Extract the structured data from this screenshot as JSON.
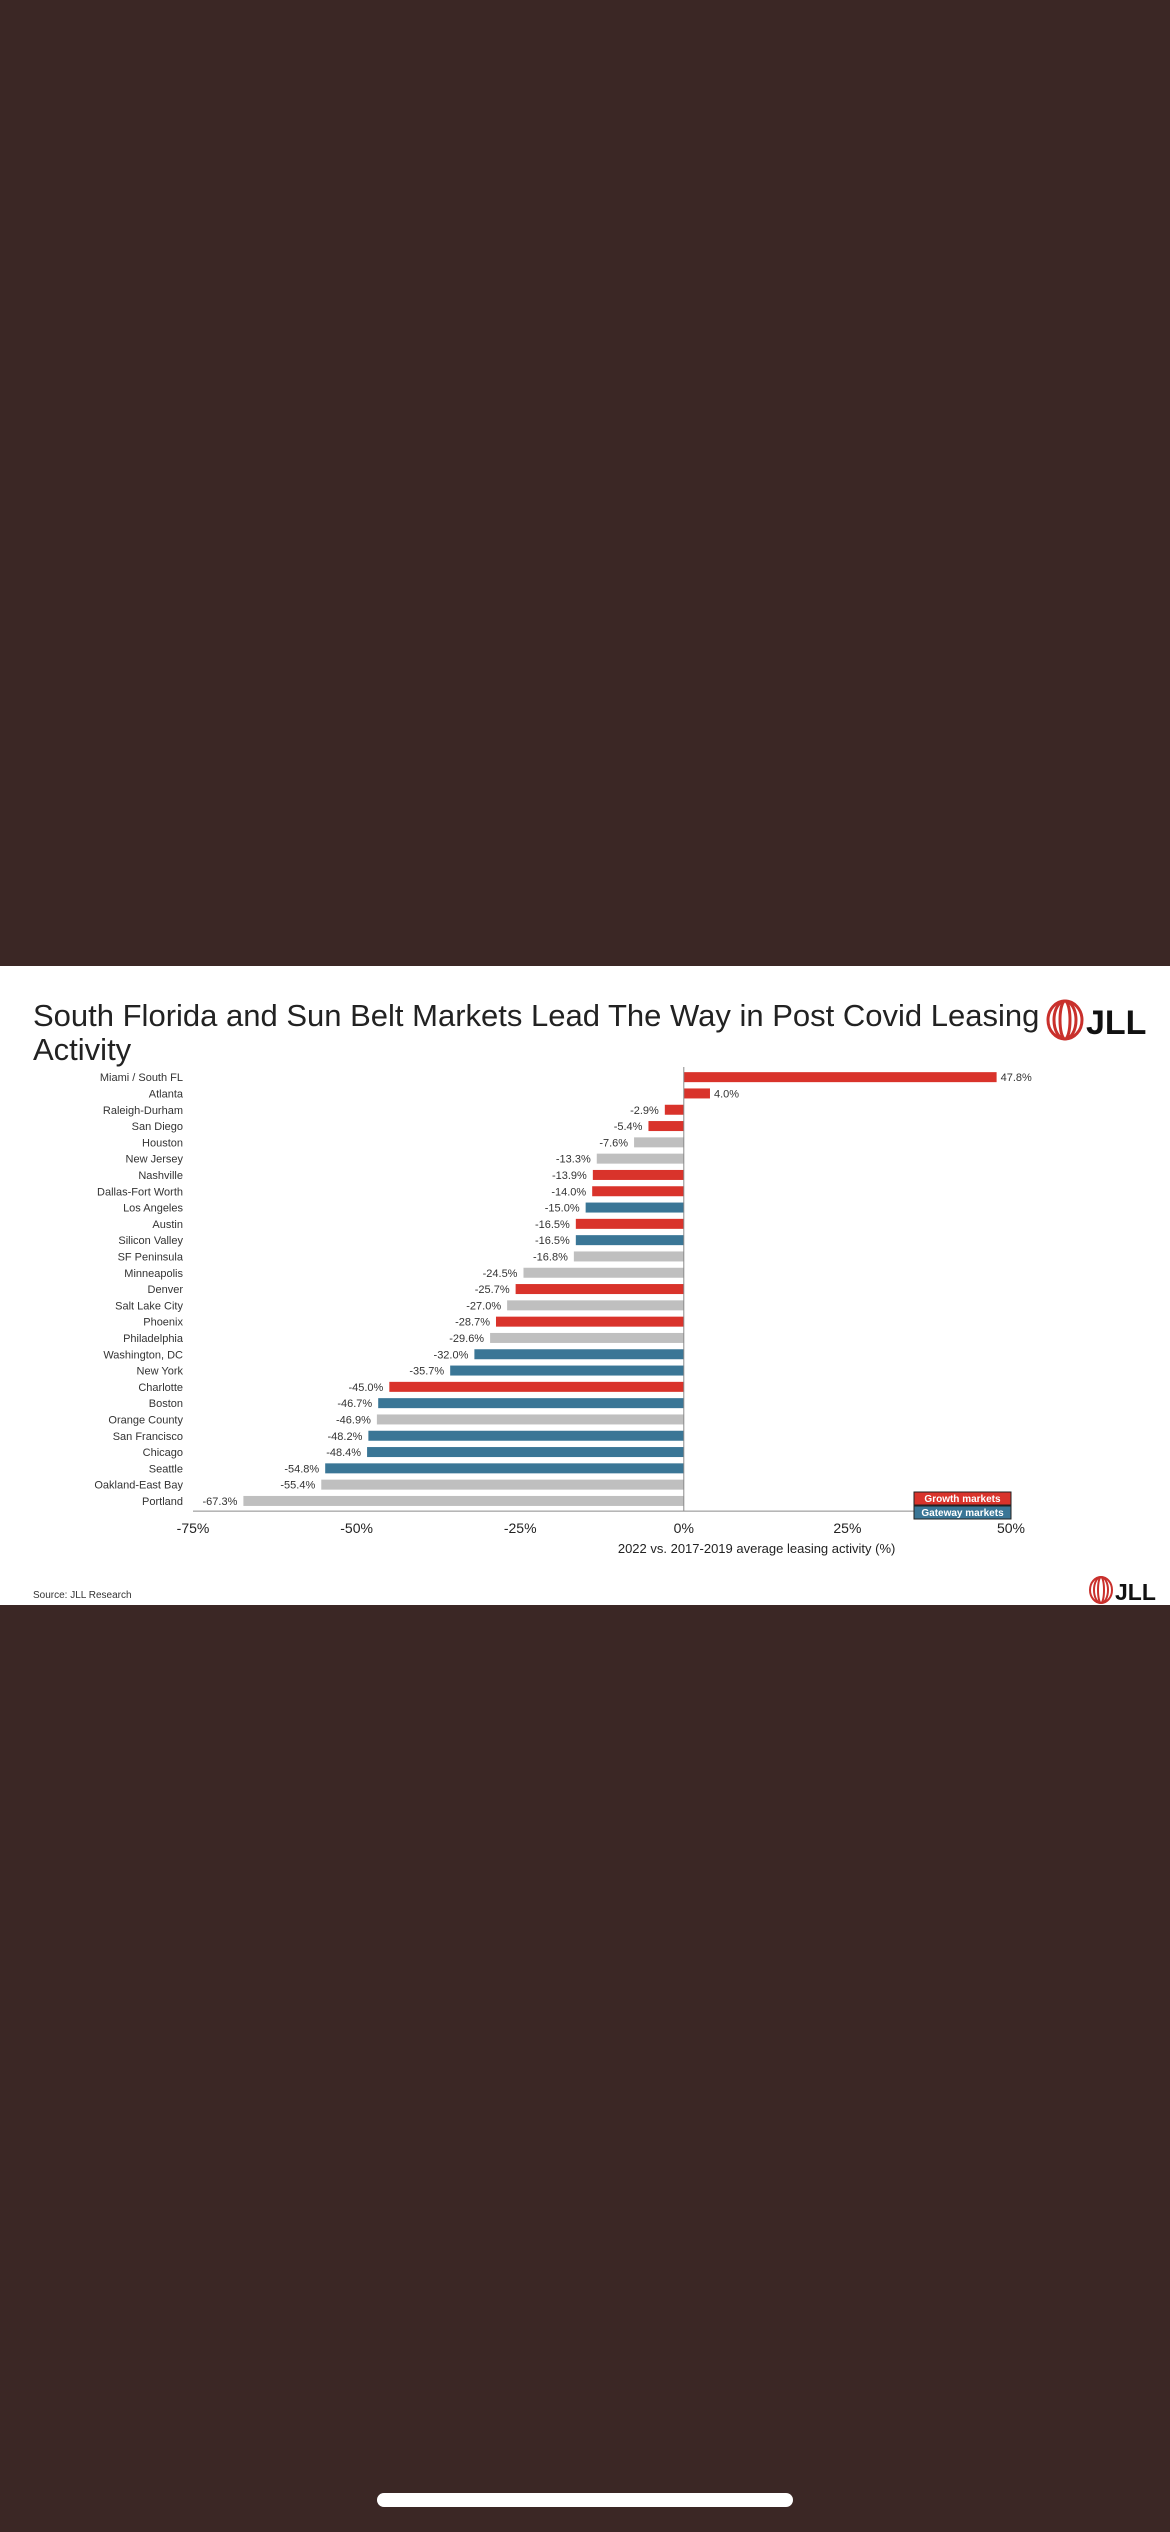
{
  "title": "South Florida and Sun Belt Markets Lead The Way in Post Covid Leasing Activity",
  "logo_text": "JLL",
  "source": "Source: JLL Research",
  "colors": {
    "growth": "#d9332b",
    "gateway": "#3a7696",
    "other": "#bfbfbf",
    "background": "#3b2725"
  },
  "chart_data": {
    "type": "bar",
    "orientation": "horizontal",
    "xlabel": "2022 vs. 2017-2019 average leasing activity (%)",
    "xlim": [
      -75,
      50
    ],
    "xticks": [
      "-75%",
      "-50%",
      "-25%",
      "0%",
      "25%",
      "50%"
    ],
    "tick_values": [
      -75,
      -50,
      -25,
      0,
      25,
      50
    ],
    "legend": {
      "placement": "bottom-right",
      "items": [
        {
          "label": "Growth markets",
          "group": "growth"
        },
        {
          "label": "Gateway markets",
          "group": "gateway"
        }
      ]
    },
    "categories": [
      "Miami / South FL",
      "Atlanta",
      "Raleigh-Durham",
      "San Diego",
      "Houston",
      "New Jersey",
      "Nashville",
      "Dallas-Fort Worth",
      "Los Angeles",
      "Austin",
      "Silicon Valley",
      "SF Peninsula",
      "Minneapolis",
      "Denver",
      "Salt Lake City",
      "Phoenix",
      "Philadelphia",
      "Washington, DC",
      "New York",
      "Charlotte",
      "Boston",
      "Orange County",
      "San Francisco",
      "Chicago",
      "Seattle",
      "Oakland-East Bay",
      "Portland"
    ],
    "values": [
      47.8,
      4.0,
      -2.9,
      -5.4,
      -7.6,
      -13.3,
      -13.9,
      -14.0,
      -15.0,
      -16.5,
      -16.5,
      -16.8,
      -24.5,
      -25.7,
      -27.0,
      -28.7,
      -29.6,
      -32.0,
      -35.7,
      -45.0,
      -46.7,
      -46.9,
      -48.2,
      -48.4,
      -54.8,
      -55.4,
      -67.3
    ],
    "value_labels": [
      "47.8%",
      "4.0%",
      "-2.9%",
      "-5.4%",
      "-7.6%",
      "-13.3%",
      "-13.9%",
      "-14.0%",
      "-15.0%",
      "-16.5%",
      "-16.5%",
      "-16.8%",
      "-24.5%",
      "-25.7%",
      "-27.0%",
      "-28.7%",
      "-29.6%",
      "-32.0%",
      "-35.7%",
      "-45.0%",
      "-46.7%",
      "-46.9%",
      "-48.2%",
      "-48.4%",
      "-54.8%",
      "-55.4%",
      "-67.3%"
    ],
    "groups": [
      "growth",
      "growth",
      "growth",
      "growth",
      "other",
      "other",
      "growth",
      "growth",
      "gateway",
      "growth",
      "gateway",
      "other",
      "other",
      "growth",
      "other",
      "growth",
      "other",
      "gateway",
      "gateway",
      "growth",
      "gateway",
      "other",
      "gateway",
      "gateway",
      "gateway",
      "other",
      "other"
    ]
  }
}
